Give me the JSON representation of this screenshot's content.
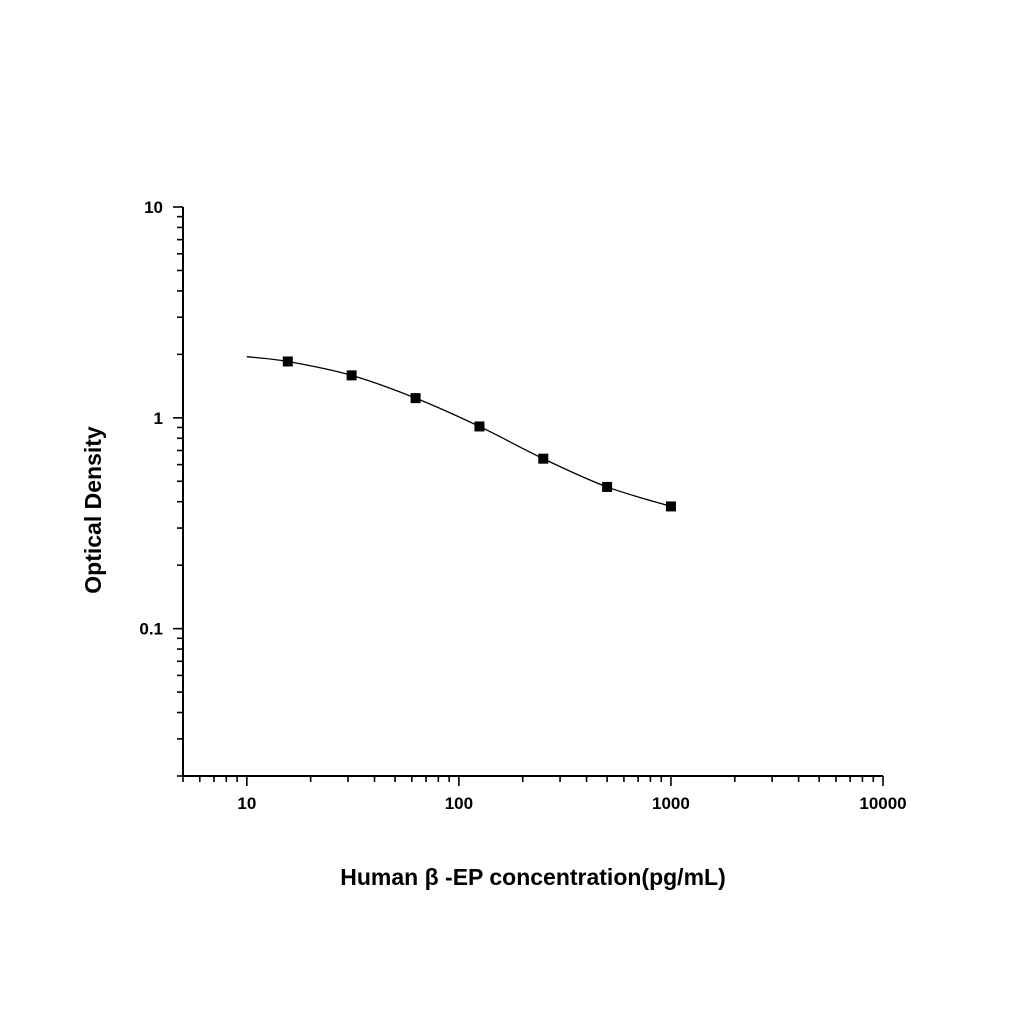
{
  "chart_data": {
    "type": "scatter",
    "xlabel": "Human β -EP concentration(pg/mL)",
    "ylabel": "Optical Density",
    "xscale": "log",
    "yscale": "log",
    "xlim": [
      5,
      10000
    ],
    "ylim": [
      0.02,
      10
    ],
    "x_ticks": [
      10,
      100,
      1000,
      10000
    ],
    "x_tick_labels": [
      "10",
      "100",
      "1000",
      "10000"
    ],
    "y_ticks": [
      0.1,
      1,
      10
    ],
    "y_tick_labels": [
      "0.1",
      "1",
      "10"
    ],
    "grid": false,
    "series": [
      {
        "marker": "square",
        "x": [
          15.6,
          31.2,
          62.5,
          125,
          250,
          500,
          1000
        ],
        "y": [
          1.85,
          1.59,
          1.24,
          0.91,
          0.64,
          0.47,
          0.38
        ]
      }
    ],
    "fit_curve": {
      "x": [
        10,
        15.6,
        31.2,
        62.5,
        125,
        250,
        500,
        1000
      ],
      "y": [
        1.95,
        1.85,
        1.59,
        1.24,
        0.91,
        0.64,
        0.47,
        0.38
      ]
    },
    "colors": {
      "line": "#000000",
      "marker": "#000000",
      "background": "#ffffff"
    }
  }
}
